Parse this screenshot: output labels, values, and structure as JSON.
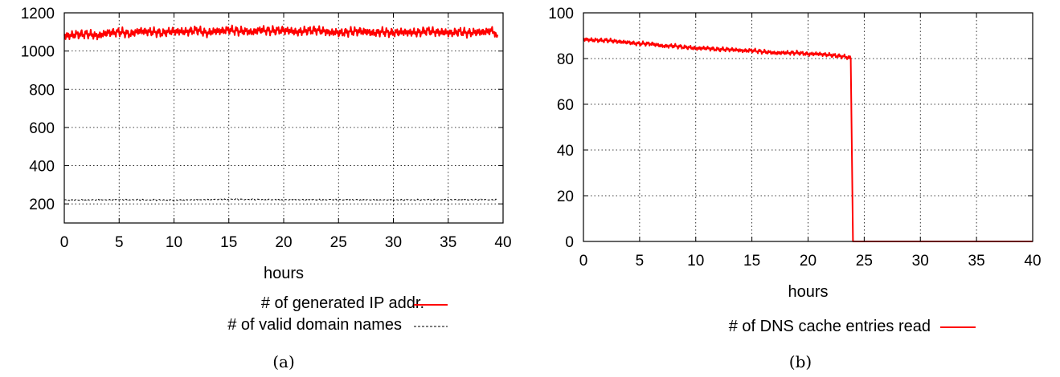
{
  "chart_data": [
    {
      "panel": "a",
      "type": "line",
      "caption": "(a)",
      "xlabel": "hours",
      "ylabel": "",
      "xlim": [
        0,
        40
      ],
      "ylim": [
        100,
        1200
      ],
      "xticks": [
        0,
        5,
        10,
        15,
        20,
        25,
        30,
        35,
        40
      ],
      "yticks": [
        200,
        400,
        600,
        800,
        1000,
        1200
      ],
      "xtick_labels": [
        "0",
        "5",
        "10",
        "15",
        "20",
        "25",
        "30",
        "35",
        "40"
      ],
      "ytick_labels": [
        "200",
        "400",
        "600",
        "800",
        "1000",
        "1200"
      ],
      "grid": true,
      "legend_position": "below",
      "series": [
        {
          "name": "# of generated IP addr.",
          "color": "#ff0000",
          "style": "solid",
          "x": [
            0,
            1,
            2,
            3,
            4,
            5,
            6,
            7,
            8,
            9,
            10,
            11,
            12,
            13,
            14,
            15,
            16,
            17,
            18,
            19,
            20,
            21,
            22,
            23,
            24,
            25,
            26,
            27,
            28,
            29,
            30,
            31,
            32,
            33,
            34,
            35,
            36,
            37,
            38,
            39,
            39.5
          ],
          "y": [
            1080,
            1085,
            1090,
            1080,
            1095,
            1100,
            1090,
            1105,
            1100,
            1095,
            1105,
            1100,
            1110,
            1095,
            1105,
            1110,
            1105,
            1100,
            1110,
            1105,
            1110,
            1100,
            1105,
            1110,
            1100,
            1095,
            1100,
            1105,
            1095,
            1100,
            1095,
            1100,
            1095,
            1105,
            1100,
            1095,
            1100,
            1095,
            1100,
            1105,
            1085
          ]
        },
        {
          "name": "# of valid domain names",
          "color": "#000000",
          "style": "dashed",
          "x": [
            0,
            5,
            10,
            15,
            20,
            25,
            30,
            35,
            39.5
          ],
          "y": [
            220,
            222,
            220,
            224,
            222,
            222,
            221,
            222,
            222
          ]
        }
      ]
    },
    {
      "panel": "b",
      "type": "line",
      "caption": "(b)",
      "xlabel": "hours",
      "ylabel": "",
      "xlim": [
        0,
        40
      ],
      "ylim": [
        0,
        100
      ],
      "xticks": [
        0,
        5,
        10,
        15,
        20,
        25,
        30,
        35,
        40
      ],
      "yticks": [
        0,
        20,
        40,
        60,
        80,
        100
      ],
      "xtick_labels": [
        "0",
        "5",
        "10",
        "15",
        "20",
        "25",
        "30",
        "35",
        "40"
      ],
      "ytick_labels": [
        "0",
        "20",
        "40",
        "60",
        "80",
        "100"
      ],
      "grid": true,
      "legend_position": "below",
      "series": [
        {
          "name": "# of DNS cache entries read",
          "color": "#ff0000",
          "style": "solid",
          "x": [
            0,
            1,
            2,
            3,
            4,
            5,
            6,
            7,
            8,
            9,
            10,
            11,
            12,
            13,
            14,
            15,
            16,
            17,
            18,
            19,
            20,
            21,
            22,
            23,
            23.6,
            23.8,
            24,
            25,
            30,
            35,
            40
          ],
          "y": [
            88.5,
            88,
            88,
            87.5,
            87,
            86.5,
            86.5,
            85.5,
            85.5,
            85,
            84.5,
            84.5,
            84,
            84,
            83.5,
            83.5,
            83,
            82.5,
            82.5,
            82.5,
            82,
            82,
            81.5,
            81,
            80.5,
            80,
            0,
            0,
            0,
            0,
            0
          ]
        }
      ]
    }
  ]
}
